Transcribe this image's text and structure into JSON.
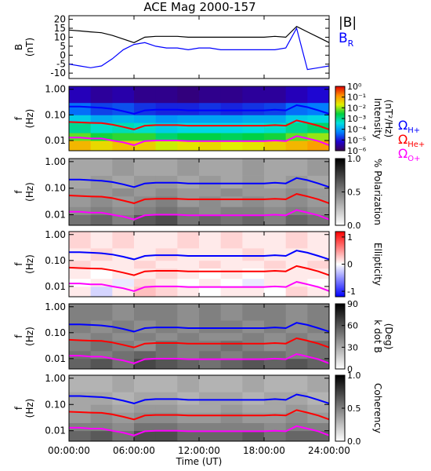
{
  "chart_data": [
    {
      "type": "line",
      "title": "ACE Mag 2000-157",
      "ylabel": [
        "B",
        "(nT)"
      ],
      "x": [
        0,
        1,
        2,
        3,
        4,
        5,
        6,
        7,
        8,
        9,
        10,
        11,
        12,
        13,
        14,
        15,
        16,
        17,
        18,
        19,
        20,
        21,
        22,
        23,
        24
      ],
      "ylim": [
        -13,
        22
      ],
      "yticks": [
        -10,
        -5,
        0,
        5,
        10,
        15,
        20
      ],
      "series": [
        {
          "name": "|B|",
          "color": "#000000",
          "values": [
            14,
            13.5,
            13,
            12.5,
            11,
            9,
            7,
            10,
            10.5,
            10.5,
            10.5,
            10,
            10,
            10,
            10,
            10,
            10,
            10,
            10,
            10.5,
            10,
            16,
            13,
            10,
            7
          ]
        },
        {
          "name": "B",
          "subscript": "R",
          "color": "#0000ff",
          "values": [
            -5,
            -6,
            -7,
            -6,
            -2,
            3,
            6,
            7,
            5,
            4,
            4,
            3,
            4,
            4,
            3,
            3,
            3,
            3,
            3,
            3,
            4,
            15,
            -8,
            -7,
            -6
          ]
        }
      ]
    },
    {
      "type": "heatmap",
      "ylabel": [
        "f",
        "(Hz)"
      ],
      "log": true,
      "ylim": [
        0.004,
        1.3
      ],
      "yticks": [
        {
          "value": 1,
          "label": "1.00"
        },
        {
          "value": 0.1,
          "label": "0.10"
        },
        0.01
      ],
      "x_edges": [
        0,
        2,
        4,
        6,
        8,
        10,
        12,
        14,
        16,
        18,
        20,
        22,
        24
      ],
      "y_edges": [
        0.004,
        0.01,
        0.02,
        0.05,
        0.1,
        0.3,
        1.3
      ],
      "z": [
        [
          -1.2,
          -1.5,
          -1.3,
          -1.4,
          -1.8,
          -1.6,
          -1.5,
          -1.7,
          -1.6,
          -1.4,
          -1.2,
          -1.0
        ],
        [
          -2.2,
          -2.5,
          -2.4,
          -2.4,
          -2.8,
          -2.6,
          -2.6,
          -2.7,
          -2.6,
          -2.5,
          -2.2,
          -2.0
        ],
        [
          -3.0,
          -3.3,
          -3.2,
          -3.3,
          -3.6,
          -3.5,
          -3.5,
          -3.5,
          -3.4,
          -3.3,
          -3.0,
          -2.8
        ],
        [
          -3.6,
          -3.9,
          -3.8,
          -3.9,
          -4.1,
          -4.0,
          -4.0,
          -4.0,
          -3.9,
          -3.9,
          -3.6,
          -3.5
        ],
        [
          -4.4,
          -4.7,
          -4.6,
          -4.8,
          -4.9,
          -4.9,
          -4.8,
          -4.9,
          -4.8,
          -4.7,
          -4.4,
          -4.3
        ],
        [
          -5.3,
          -5.5,
          -5.4,
          -5.6,
          -5.6,
          -5.7,
          -5.6,
          -5.6,
          -5.5,
          -5.5,
          -5.3,
          -5.1
        ]
      ],
      "zlim": [
        -6,
        0
      ],
      "zticks": [
        {
          "value": 0,
          "label": "10⁰"
        },
        {
          "value": -1,
          "label": "10⁻¹"
        },
        {
          "value": -2,
          "label": "10⁻²"
        },
        {
          "value": -3,
          "label": "10⁻³"
        },
        {
          "value": -4,
          "label": "10⁻⁴"
        },
        {
          "value": -5,
          "label": "10⁻⁵"
        },
        {
          "value": -6,
          "label": "10⁻⁶"
        }
      ],
      "zlabel": [
        "Intensity",
        "(nT²/Hz)"
      ],
      "colors": [
        "#3c0050",
        "#2000d0",
        "#0080ff",
        "#00e0e0",
        "#00d040",
        "#e0f000",
        "#ff9000",
        "#e00000"
      ],
      "series": [
        {
          "name": "Ω",
          "subscript": "H+",
          "color": "#0000ff",
          "values": [
            0.21,
            0.21,
            0.2,
            0.19,
            0.17,
            0.14,
            0.11,
            0.15,
            0.16,
            0.16,
            0.16,
            0.15,
            0.15,
            0.15,
            0.15,
            0.15,
            0.15,
            0.15,
            0.15,
            0.16,
            0.15,
            0.24,
            0.2,
            0.15,
            0.11
          ]
        },
        {
          "name": "Ω",
          "subscript": "He+",
          "color": "#ff0000",
          "values": [
            0.053,
            0.051,
            0.049,
            0.048,
            0.042,
            0.034,
            0.027,
            0.038,
            0.04,
            0.04,
            0.04,
            0.038,
            0.038,
            0.038,
            0.038,
            0.038,
            0.038,
            0.038,
            0.038,
            0.04,
            0.038,
            0.061,
            0.049,
            0.038,
            0.027
          ]
        },
        {
          "name": "Ω",
          "subscript": "O+",
          "color": "#ff00ff",
          "values": [
            0.013,
            0.013,
            0.012,
            0.012,
            0.01,
            0.0085,
            0.0066,
            0.0095,
            0.01,
            0.01,
            0.01,
            0.0095,
            0.0095,
            0.0095,
            0.0095,
            0.0095,
            0.0095,
            0.0095,
            0.0095,
            0.01,
            0.0095,
            0.015,
            0.012,
            0.0095,
            0.0066
          ]
        }
      ]
    },
    {
      "type": "heatmap",
      "ylabel": [
        "f",
        "(Hz)"
      ],
      "log": true,
      "ylim": [
        0.004,
        1.3
      ],
      "yticks": [
        {
          "value": 1,
          "label": "1.00"
        },
        {
          "value": 0.1,
          "label": "0.10"
        },
        0.01
      ],
      "z": [
        [
          0.55,
          0.6,
          0.5,
          0.65,
          0.7,
          0.55,
          0.6,
          0.55,
          0.6,
          0.5,
          0.6,
          0.55
        ],
        [
          0.45,
          0.5,
          0.45,
          0.5,
          0.55,
          0.5,
          0.45,
          0.5,
          0.5,
          0.45,
          0.5,
          0.45
        ],
        [
          0.4,
          0.45,
          0.4,
          0.45,
          0.5,
          0.4,
          0.45,
          0.4,
          0.45,
          0.4,
          0.45,
          0.4
        ],
        [
          0.4,
          0.4,
          0.45,
          0.4,
          0.45,
          0.4,
          0.4,
          0.45,
          0.4,
          0.4,
          0.45,
          0.4
        ],
        [
          0.35,
          0.4,
          0.35,
          0.4,
          0.4,
          0.35,
          0.4,
          0.35,
          0.4,
          0.35,
          0.4,
          0.35
        ],
        [
          0.35,
          0.35,
          0.4,
          0.35,
          0.35,
          0.4,
          0.35,
          0.35,
          0.4,
          0.35,
          0.35,
          0.4
        ]
      ],
      "zlim": [
        0,
        1
      ],
      "zticks": [
        {
          "value": 1,
          "label": "1.0"
        },
        0.5,
        {
          "value": 0,
          "label": "0.0"
        }
      ],
      "zlabel": [
        "% Polarization"
      ],
      "colors": [
        "#ffffff",
        "#000000"
      ]
    },
    {
      "type": "heatmap",
      "ylabel": [
        "f",
        "(Hz)"
      ],
      "log": true,
      "ylim": [
        0.004,
        1.3
      ],
      "yticks": [
        {
          "value": 1,
          "label": "1.00"
        },
        {
          "value": 0.1,
          "label": "0.10"
        },
        0.01
      ],
      "z": [
        [
          0.1,
          -0.2,
          0.1,
          0.3,
          0.2,
          0.1,
          0,
          0.1,
          0.1,
          0,
          0.2,
          0.1
        ],
        [
          0,
          0.1,
          -0.1,
          0.2,
          0.1,
          0,
          0.1,
          0,
          -0.1,
          0.1,
          0.1,
          0
        ],
        [
          0.1,
          0,
          0.1,
          0.1,
          0.2,
          0.1,
          0,
          0.1,
          0,
          0.1,
          0.1,
          0.1
        ],
        [
          0.2,
          0.1,
          0.1,
          0.2,
          0.1,
          0.1,
          0.2,
          0.1,
          0.1,
          0.2,
          0.1,
          0.2
        ],
        [
          0.1,
          0.2,
          0.1,
          0.1,
          0.2,
          0.1,
          0.1,
          0.1,
          0.2,
          0.1,
          0.1,
          0.1
        ],
        [
          0.2,
          0.1,
          0.2,
          0.1,
          0.1,
          0.2,
          0.1,
          0.2,
          0.1,
          0.1,
          0.2,
          0.1
        ]
      ],
      "zlim": [
        -1.2,
        1.2
      ],
      "zticks": [
        1,
        0,
        -1
      ],
      "zlabel": [
        "Ellipticity"
      ],
      "colors": [
        "#0000ff",
        "#ffffff",
        "#ff0000"
      ]
    },
    {
      "type": "heatmap",
      "ylabel": [
        "f",
        "(Hz)"
      ],
      "log": true,
      "ylim": [
        0.004,
        1.3
      ],
      "yticks": [
        {
          "value": 1,
          "label": "1.00"
        },
        {
          "value": 0.1,
          "label": "0.10"
        },
        0.01
      ],
      "z": [
        [
          55,
          60,
          50,
          65,
          60,
          55,
          50,
          55,
          60,
          55,
          60,
          55
        ],
        [
          50,
          45,
          50,
          55,
          50,
          45,
          50,
          45,
          50,
          50,
          45,
          50
        ],
        [
          45,
          50,
          45,
          40,
          50,
          45,
          45,
          50,
          45,
          40,
          45,
          50
        ],
        [
          40,
          45,
          40,
          45,
          40,
          45,
          40,
          40,
          45,
          40,
          45,
          40
        ],
        [
          45,
          40,
          45,
          40,
          45,
          40,
          45,
          45,
          40,
          45,
          40,
          45
        ],
        [
          45,
          45,
          40,
          45,
          45,
          40,
          45,
          40,
          45,
          45,
          40,
          45
        ]
      ],
      "zlim": [
        0,
        90
      ],
      "zticks": [
        90,
        60,
        30,
        0
      ],
      "zlabel": [
        "k dot B",
        "(Deg)"
      ],
      "colors": [
        "#ffffff",
        "#000000"
      ]
    },
    {
      "type": "heatmap",
      "ylabel": [
        "f",
        "(Hz)"
      ],
      "log": true,
      "ylim": [
        0.004,
        1.3
      ],
      "yticks": [
        {
          "value": 1,
          "label": "1.00"
        },
        {
          "value": 0.1,
          "label": "0.10"
        },
        0.01
      ],
      "z": [
        [
          0.6,
          0.65,
          0.55,
          0.7,
          0.7,
          0.6,
          0.6,
          0.6,
          0.65,
          0.55,
          0.6,
          0.6
        ],
        [
          0.5,
          0.5,
          0.45,
          0.55,
          0.55,
          0.5,
          0.5,
          0.5,
          0.5,
          0.45,
          0.5,
          0.5
        ],
        [
          0.4,
          0.45,
          0.4,
          0.45,
          0.45,
          0.4,
          0.4,
          0.45,
          0.4,
          0.4,
          0.45,
          0.4
        ],
        [
          0.35,
          0.4,
          0.35,
          0.4,
          0.4,
          0.35,
          0.35,
          0.4,
          0.35,
          0.35,
          0.4,
          0.35
        ],
        [
          0.35,
          0.35,
          0.3,
          0.35,
          0.35,
          0.3,
          0.35,
          0.35,
          0.3,
          0.35,
          0.35,
          0.3
        ],
        [
          0.3,
          0.3,
          0.35,
          0.3,
          0.3,
          0.35,
          0.3,
          0.3,
          0.35,
          0.3,
          0.3,
          0.35
        ]
      ],
      "zlim": [
        0,
        1
      ],
      "zticks": [
        {
          "value": 1,
          "label": "1.0"
        },
        0.5,
        {
          "value": 0,
          "label": "0.0"
        }
      ],
      "zlabel": [
        "Coherency"
      ],
      "colors": [
        "#ffffff",
        "#000000"
      ],
      "xlim": [
        0,
        24
      ],
      "xticks": [
        {
          "value": 0,
          "label": "00:00:00"
        },
        {
          "value": 6,
          "label": "06:00:00"
        },
        {
          "value": 12,
          "label": "12:00:00"
        },
        {
          "value": 18,
          "label": "18:00:00"
        },
        {
          "value": 24,
          "label": "24:00:00"
        }
      ],
      "xlabel": "Time (UT)"
    }
  ]
}
